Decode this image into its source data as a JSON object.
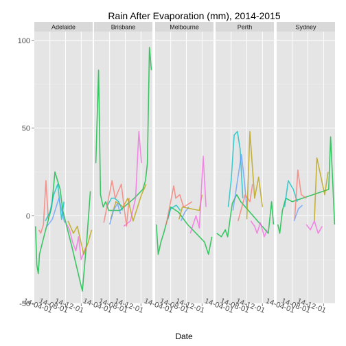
{
  "chart_data": {
    "type": "line",
    "title": "Rain After Evaporation (mm), 2014-2015",
    "xlabel": "Date",
    "ylabel": "",
    "ylim": [
      -50,
      105
    ],
    "yticks": [
      -50,
      0,
      50,
      100
    ],
    "xlim": [
      "2013-12-01",
      "2015-02-28"
    ],
    "xticks": [
      "2014-04-01",
      "2014-08-01",
      "2014-12-01"
    ],
    "xtick_labels": [
      "14-04-01",
      "14-08-01",
      "14-12-01"
    ],
    "grid": true,
    "legend": "none",
    "facets": [
      {
        "name": "Adelaide",
        "series": [
          {
            "color": "#f8766d",
            "x": [
              "2014-01-05",
              "2014-01-20",
              "2014-02-10",
              "2014-03-01",
              "2014-03-20"
            ],
            "y": [
              -8,
              -10,
              -5,
              20,
              -2
            ]
          },
          {
            "color": "#00ba38",
            "x": [
              "2013-12-10",
              "2013-12-20",
              "2014-01-01",
              "2014-01-10",
              "2014-02-20",
              "2014-04-15",
              "2014-05-10",
              "2014-06-20",
              "2014-07-10",
              "2014-09-20",
              "2014-12-10",
              "2015-01-15",
              "2015-02-10"
            ],
            "y": [
              -6,
              -28,
              -33,
              -22,
              -10,
              5,
              25,
              15,
              3,
              -18,
              -43,
              -12,
              14
            ]
          },
          {
            "color": "#00bfc4",
            "x": [
              "2014-02-25",
              "2014-04-01",
              "2014-05-01",
              "2014-06-01",
              "2014-07-01",
              "2014-07-20"
            ],
            "y": [
              -3,
              2,
              12,
              18,
              -2,
              8
            ]
          },
          {
            "color": "#619cff",
            "x": [
              "2014-03-10",
              "2014-04-20",
              "2014-06-10",
              "2014-07-25"
            ],
            "y": [
              -6,
              -2,
              10,
              -4
            ]
          },
          {
            "color": "#f564e3",
            "x": [
              "2014-08-10",
              "2014-09-01",
              "2014-09-25",
              "2014-10-20",
              "2014-11-10",
              "2014-12-01",
              "2015-01-05"
            ],
            "y": [
              -5,
              -8,
              -15,
              -20,
              -12,
              -25,
              -18
            ]
          },
          {
            "color": "#b79f00",
            "x": [
              "2014-08-20",
              "2014-10-01",
              "2014-11-01",
              "2014-12-20",
              "2015-01-25",
              "2015-02-20"
            ],
            "y": [
              -3,
              -10,
              -6,
              -22,
              -15,
              -8
            ]
          }
        ]
      },
      {
        "name": "Brisbane",
        "series": [
          {
            "color": "#00ba38",
            "x": [
              "2013-12-15",
              "2014-01-05",
              "2014-01-20",
              "2014-02-10",
              "2014-03-01",
              "2014-03-25",
              "2014-06-20",
              "2014-10-10",
              "2014-12-15",
              "2015-01-05",
              "2015-01-20",
              "2015-02-05",
              "2015-02-20"
            ],
            "y": [
              30,
              83,
              12,
              5,
              8,
              3,
              3,
              10,
              15,
              20,
              30,
              96,
              83
            ]
          },
          {
            "color": "#b79f00",
            "x": [
              "2014-04-10",
              "2014-05-20",
              "2014-07-15",
              "2014-08-20",
              "2014-10-01",
              "2014-12-05",
              "2015-01-10"
            ],
            "y": [
              -2,
              8,
              5,
              10,
              -3,
              12,
              18
            ]
          },
          {
            "color": "#00bfc4",
            "x": [
              "2014-03-10",
              "2014-04-15",
              "2014-05-10",
              "2014-06-10",
              "2014-07-10"
            ],
            "y": [
              5,
              10,
              10,
              8,
              3
            ]
          },
          {
            "color": "#619cff",
            "x": [
              "2014-04-01",
              "2014-05-01",
              "2014-06-01",
              "2014-06-25"
            ],
            "y": [
              -5,
              3,
              7,
              1
            ]
          },
          {
            "color": "#f564e3",
            "x": [
              "2014-07-20",
              "2014-09-10",
              "2014-10-20",
              "2014-11-15",
              "2014-12-05"
            ],
            "y": [
              -6,
              -3,
              10,
              48,
              30
            ]
          },
          {
            "color": "#f8766d",
            "x": [
              "2014-02-15",
              "2014-04-20",
              "2014-05-15",
              "2014-07-01",
              "2014-08-10",
              "2014-09-01"
            ],
            "y": [
              -4,
              20,
              10,
              18,
              -6,
              10
            ]
          }
        ]
      },
      {
        "name": "Melbourne",
        "series": [
          {
            "color": "#00ba38",
            "x": [
              "2013-12-10",
              "2013-12-25",
              "2014-01-15",
              "2014-02-05",
              "2014-04-01",
              "2014-06-01",
              "2014-08-10",
              "2014-12-20",
              "2015-01-20",
              "2015-02-15"
            ],
            "y": [
              -5,
              -22,
              -15,
              -10,
              5,
              2,
              -5,
              -15,
              -22,
              -12
            ]
          },
          {
            "color": "#00bfc4",
            "x": [
              "2014-03-10",
              "2014-04-01",
              "2014-05-15",
              "2014-06-15"
            ],
            "y": [
              -2,
              4,
              6,
              3
            ]
          },
          {
            "color": "#619cff",
            "x": [
              "2014-06-20",
              "2014-07-20",
              "2014-08-20"
            ],
            "y": [
              -3,
              2,
              5
            ]
          },
          {
            "color": "#f8766d",
            "x": [
              "2014-02-25",
              "2014-04-25",
              "2014-05-10",
              "2014-06-10",
              "2014-07-10",
              "2014-09-15"
            ],
            "y": [
              -5,
              17,
              10,
              12,
              5,
              8
            ]
          },
          {
            "color": "#b79f00",
            "x": [
              "2014-06-05",
              "2014-07-01",
              "2014-11-10",
              "2014-12-01"
            ],
            "y": [
              -2,
              5,
              3,
              12
            ]
          },
          {
            "color": "#f564e3",
            "x": [
              "2014-09-01",
              "2014-10-15",
              "2014-11-10",
              "2014-12-10",
              "2015-01-01"
            ],
            "y": [
              -10,
              0,
              -7,
              34,
              5
            ]
          }
        ]
      },
      {
        "name": "Perth",
        "series": [
          {
            "color": "#00ba38",
            "x": [
              "2013-12-10",
              "2014-01-15",
              "2014-02-15",
              "2014-03-05",
              "2014-04-10",
              "2014-05-15",
              "2014-06-15",
              "2015-01-15",
              "2015-02-10",
              "2015-02-25"
            ],
            "y": [
              -10,
              -12,
              -8,
              -12,
              7,
              12,
              8,
              -10,
              8,
              -5
            ]
          },
          {
            "color": "#00bfc4",
            "x": [
              "2014-03-10",
              "2014-04-01",
              "2014-04-25",
              "2014-05-20",
              "2014-06-10",
              "2014-07-01"
            ],
            "y": [
              5,
              20,
              46,
              48,
              38,
              10
            ]
          },
          {
            "color": "#619cff",
            "x": [
              "2014-04-15",
              "2014-05-10",
              "2014-06-20",
              "2014-07-10",
              "2014-08-01"
            ],
            "y": [
              3,
              15,
              35,
              22,
              5
            ]
          },
          {
            "color": "#f8766d",
            "x": [
              "2014-05-25",
              "2014-07-20",
              "2014-08-25",
              "2014-09-15"
            ],
            "y": [
              -3,
              12,
              8,
              18
            ]
          },
          {
            "color": "#b79f00",
            "x": [
              "2014-08-01",
              "2014-08-25",
              "2014-10-01",
              "2014-11-01",
              "2014-12-01"
            ],
            "y": [
              -2,
              48,
              10,
              22,
              5
            ]
          },
          {
            "color": "#f564e3",
            "x": [
              "2014-09-01",
              "2014-10-01",
              "2014-10-20",
              "2014-11-15",
              "2014-12-15",
              "2015-01-05"
            ],
            "y": [
              -3,
              -6,
              -10,
              -4,
              -12,
              -8
            ]
          }
        ]
      },
      {
        "name": "Sydney",
        "series": [
          {
            "color": "#00ba38",
            "x": [
              "2013-12-10",
              "2013-12-25",
              "2014-01-15",
              "2014-02-10",
              "2014-04-01",
              "2015-01-10",
              "2015-01-25",
              "2015-02-10",
              "2015-02-25"
            ],
            "y": [
              -5,
              -10,
              3,
              10,
              8,
              15,
              45,
              20,
              -5
            ]
          },
          {
            "color": "#00bfc4",
            "x": [
              "2014-02-01",
              "2014-03-01",
              "2014-04-10",
              "2014-05-10"
            ],
            "y": [
              5,
              20,
              15,
              8
            ]
          },
          {
            "color": "#619cff",
            "x": [
              "2014-04-15",
              "2014-05-20",
              "2014-06-20"
            ],
            "y": [
              -3,
              4,
              6
            ]
          },
          {
            "color": "#f8766d",
            "x": [
              "2014-04-20",
              "2014-05-15",
              "2014-06-10",
              "2014-07-20"
            ],
            "y": [
              -2,
              26,
              12,
              10
            ]
          },
          {
            "color": "#b79f00",
            "x": [
              "2014-09-20",
              "2014-10-10",
              "2014-12-10",
              "2015-01-05"
            ],
            "y": [
              -3,
              33,
              12,
              25
            ]
          },
          {
            "color": "#f564e3",
            "x": [
              "2014-07-20",
              "2014-08-20",
              "2014-09-20",
              "2014-10-20",
              "2014-11-20"
            ],
            "y": [
              -5,
              -8,
              -3,
              -10,
              -6
            ]
          }
        ]
      }
    ]
  }
}
